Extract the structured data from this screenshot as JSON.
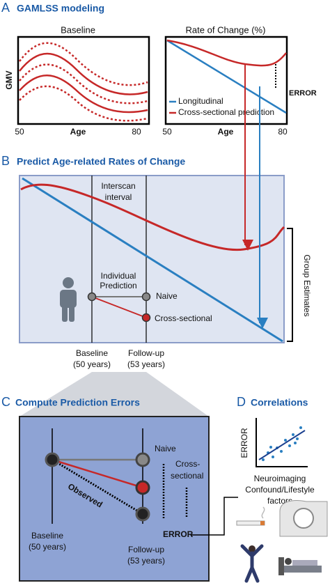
{
  "panel_a": {
    "letter": "A",
    "title": "GAMLSS modeling",
    "baseline_plot": {
      "title": "Baseline",
      "y_label": "GMV",
      "x_label": "Age",
      "x_start": "50",
      "x_end": "80"
    },
    "rate_plot": {
      "title": "Rate of Change (%)",
      "x_label": "Age",
      "x_start": "50",
      "x_end": "80",
      "legend": [
        "Longitudinal",
        "Cross-sectional prediction"
      ],
      "error_label": "ERROR"
    }
  },
  "panel_b": {
    "letter": "B",
    "title": "Predict Age-related Rates of  Change",
    "interscan_label": [
      "Interscan",
      "interval"
    ],
    "individual_label": [
      "Individual",
      "Prediction"
    ],
    "naive_label": "Naive",
    "cross_sectional_label": "Cross-sectional",
    "group_label": "Group Estimates",
    "baseline_label": [
      "Baseline",
      "(50 years)"
    ],
    "followup_label": [
      "Follow-up",
      "(53 years)"
    ]
  },
  "panel_c": {
    "letter": "C",
    "title": "Compute Prediction Errors",
    "naive_label": "Naive",
    "cross_sectional_label": [
      "Cross-",
      "sectional"
    ],
    "observed_label": "Observed",
    "baseline_label": [
      "Baseline",
      "(50 years)"
    ],
    "followup_label": [
      "Follow-up",
      "(53 years)"
    ],
    "error_label": "ERROR"
  },
  "panel_d": {
    "letter": "D",
    "title": "Correlations",
    "y_label": "ERROR",
    "x_label": [
      "Neuroimaging",
      "Confound/Lifestyle",
      "factors"
    ]
  }
}
